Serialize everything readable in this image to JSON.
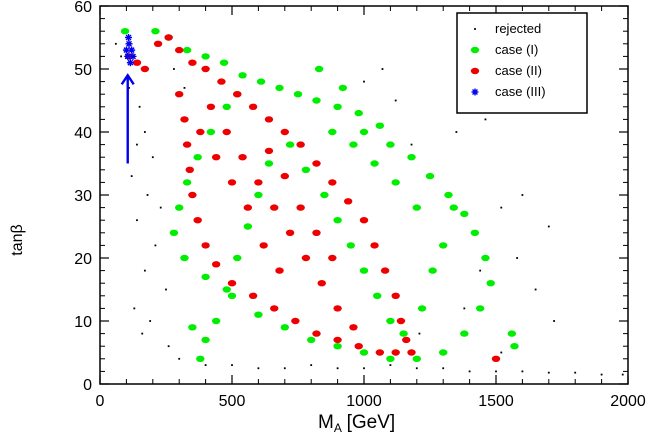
{
  "chart_data": {
    "type": "scatter",
    "title": "",
    "xlabel": "M",
    "xlabel_sub": "A",
    "xlabel_unit": "[GeV]",
    "ylabel": "tanβ",
    "xlim": [
      0,
      2000
    ],
    "ylim": [
      0,
      60
    ],
    "x_ticks": [
      0,
      500,
      1000,
      1500,
      2000
    ],
    "y_ticks": [
      0,
      10,
      20,
      30,
      40,
      50,
      60
    ],
    "x_tick_labels": [
      "0",
      "500",
      "1000",
      "1500",
      "2000"
    ],
    "y_tick_labels": [
      "0",
      "10",
      "20",
      "30",
      "40",
      "50",
      "60"
    ],
    "grid": false,
    "legend_position": "top-right",
    "legend": [
      "rejected",
      "case (I)",
      "case (II)",
      "case (III)"
    ],
    "series": [
      {
        "name": "rejected",
        "color": "#000000",
        "marker": "dot",
        "points": [
          [
            60,
            54
          ],
          [
            80,
            52
          ],
          [
            110,
            47
          ],
          [
            150,
            44
          ],
          [
            170,
            40
          ],
          [
            140,
            38
          ],
          [
            200,
            36
          ],
          [
            120,
            33
          ],
          [
            180,
            30
          ],
          [
            230,
            28
          ],
          [
            140,
            26
          ],
          [
            210,
            22
          ],
          [
            170,
            18
          ],
          [
            250,
            15
          ],
          [
            130,
            12
          ],
          [
            190,
            10
          ],
          [
            160,
            8
          ],
          [
            260,
            6
          ],
          [
            300,
            4
          ],
          [
            400,
            3
          ],
          [
            500,
            3
          ],
          [
            600,
            2.5
          ],
          [
            700,
            2.5
          ],
          [
            800,
            3
          ],
          [
            900,
            2.5
          ],
          [
            1000,
            2.5
          ],
          [
            1100,
            3
          ],
          [
            1200,
            2.5
          ],
          [
            1300,
            2.5
          ],
          [
            1400,
            2
          ],
          [
            1500,
            2
          ],
          [
            1600,
            2
          ],
          [
            1700,
            1.8
          ],
          [
            1800,
            1.8
          ],
          [
            1900,
            1.5
          ],
          [
            1980,
            1.5
          ],
          [
            1350,
            40
          ],
          [
            1180,
            38
          ],
          [
            1460,
            42
          ],
          [
            1600,
            30
          ],
          [
            1520,
            28
          ],
          [
            1700,
            25
          ],
          [
            1580,
            20
          ],
          [
            1650,
            15
          ],
          [
            1720,
            10
          ],
          [
            1440,
            18
          ],
          [
            1380,
            12
          ],
          [
            1210,
            8
          ],
          [
            1520,
            5
          ],
          [
            1120,
            45
          ],
          [
            1070,
            50
          ],
          [
            1000,
            48
          ],
          [
            280,
            50
          ],
          [
            320,
            47
          ]
        ]
      },
      {
        "name": "case (I)",
        "color": "#00ee00",
        "marker": "circle",
        "points": [
          [
            95,
            56
          ],
          [
            210,
            56
          ],
          [
            260,
            55
          ],
          [
            330,
            53
          ],
          [
            400,
            52
          ],
          [
            470,
            51
          ],
          [
            540,
            49
          ],
          [
            610,
            48
          ],
          [
            680,
            47
          ],
          [
            750,
            46
          ],
          [
            820,
            45
          ],
          [
            900,
            44
          ],
          [
            980,
            43
          ],
          [
            1060,
            41
          ],
          [
            830,
            50
          ],
          [
            920,
            47
          ],
          [
            1000,
            40
          ],
          [
            1100,
            38
          ],
          [
            1180,
            36
          ],
          [
            1250,
            33
          ],
          [
            1320,
            30
          ],
          [
            1380,
            27
          ],
          [
            1420,
            24
          ],
          [
            1460,
            20
          ],
          [
            1480,
            16
          ],
          [
            1440,
            12
          ],
          [
            1380,
            8
          ],
          [
            1300,
            5
          ],
          [
            1200,
            4
          ],
          [
            1100,
            4
          ],
          [
            1000,
            5
          ],
          [
            900,
            6
          ],
          [
            800,
            7
          ],
          [
            700,
            9
          ],
          [
            600,
            11
          ],
          [
            500,
            14
          ],
          [
            400,
            17
          ],
          [
            320,
            20
          ],
          [
            280,
            24
          ],
          [
            300,
            28
          ],
          [
            330,
            32
          ],
          [
            370,
            36
          ],
          [
            420,
            40
          ],
          [
            480,
            44
          ],
          [
            520,
            46
          ],
          [
            720,
            38
          ],
          [
            780,
            34
          ],
          [
            850,
            30
          ],
          [
            900,
            26
          ],
          [
            950,
            22
          ],
          [
            1000,
            18
          ],
          [
            1050,
            14
          ],
          [
            1100,
            10
          ],
          [
            1150,
            8
          ],
          [
            1220,
            12
          ],
          [
            1260,
            18
          ],
          [
            1300,
            22
          ],
          [
            1340,
            28
          ],
          [
            1200,
            28
          ],
          [
            1120,
            32
          ],
          [
            1040,
            35
          ],
          [
            960,
            38
          ],
          [
            880,
            40
          ],
          [
            640,
            35
          ],
          [
            600,
            30
          ],
          [
            560,
            25
          ],
          [
            520,
            20
          ],
          [
            480,
            15
          ],
          [
            440,
            10
          ],
          [
            400,
            7
          ],
          [
            350,
            9
          ],
          [
            380,
            4
          ],
          [
            1560,
            8
          ],
          [
            1570,
            6
          ]
        ]
      },
      {
        "name": "case (II)",
        "color": "#ee0000",
        "marker": "circle",
        "points": [
          [
            110,
            52
          ],
          [
            140,
            51
          ],
          [
            170,
            50
          ],
          [
            220,
            54
          ],
          [
            260,
            55
          ],
          [
            300,
            53
          ],
          [
            350,
            51
          ],
          [
            400,
            50
          ],
          [
            460,
            48
          ],
          [
            520,
            46
          ],
          [
            580,
            44
          ],
          [
            640,
            42
          ],
          [
            700,
            40
          ],
          [
            760,
            38
          ],
          [
            820,
            35
          ],
          [
            880,
            32
          ],
          [
            940,
            29
          ],
          [
            1000,
            26
          ],
          [
            1040,
            22
          ],
          [
            1080,
            18
          ],
          [
            1120,
            14
          ],
          [
            1140,
            10
          ],
          [
            1160,
            7
          ],
          [
            1120,
            5
          ],
          [
            1060,
            5
          ],
          [
            980,
            6
          ],
          [
            900,
            7
          ],
          [
            820,
            8
          ],
          [
            740,
            10
          ],
          [
            660,
            12
          ],
          [
            580,
            14
          ],
          [
            500,
            16
          ],
          [
            440,
            19
          ],
          [
            400,
            22
          ],
          [
            370,
            26
          ],
          [
            350,
            30
          ],
          [
            340,
            34
          ],
          [
            330,
            38
          ],
          [
            320,
            42
          ],
          [
            300,
            46
          ],
          [
            420,
            44
          ],
          [
            480,
            40
          ],
          [
            540,
            36
          ],
          [
            600,
            32
          ],
          [
            660,
            28
          ],
          [
            720,
            24
          ],
          [
            780,
            20
          ],
          [
            840,
            16
          ],
          [
            900,
            12
          ],
          [
            960,
            9
          ],
          [
            680,
            18
          ],
          [
            620,
            22
          ],
          [
            560,
            28
          ],
          [
            500,
            32
          ],
          [
            440,
            36
          ],
          [
            380,
            40
          ],
          [
            760,
            28
          ],
          [
            820,
            24
          ],
          [
            880,
            20
          ],
          [
            700,
            33
          ],
          [
            640,
            37
          ],
          [
            1180,
            5
          ],
          [
            1500,
            4
          ]
        ]
      },
      {
        "name": "case (III)",
        "color": "#0000ee",
        "marker": "star",
        "points": [
          [
            100,
            53
          ],
          [
            105,
            52
          ],
          [
            110,
            54
          ],
          [
            115,
            51
          ],
          [
            120,
            53
          ],
          [
            108,
            55
          ],
          [
            125,
            52
          ]
        ]
      }
    ],
    "annotations": [
      {
        "type": "arrow",
        "from": [
          105,
          35
        ],
        "to": [
          105,
          49
        ],
        "color": "#0000ee"
      }
    ]
  }
}
